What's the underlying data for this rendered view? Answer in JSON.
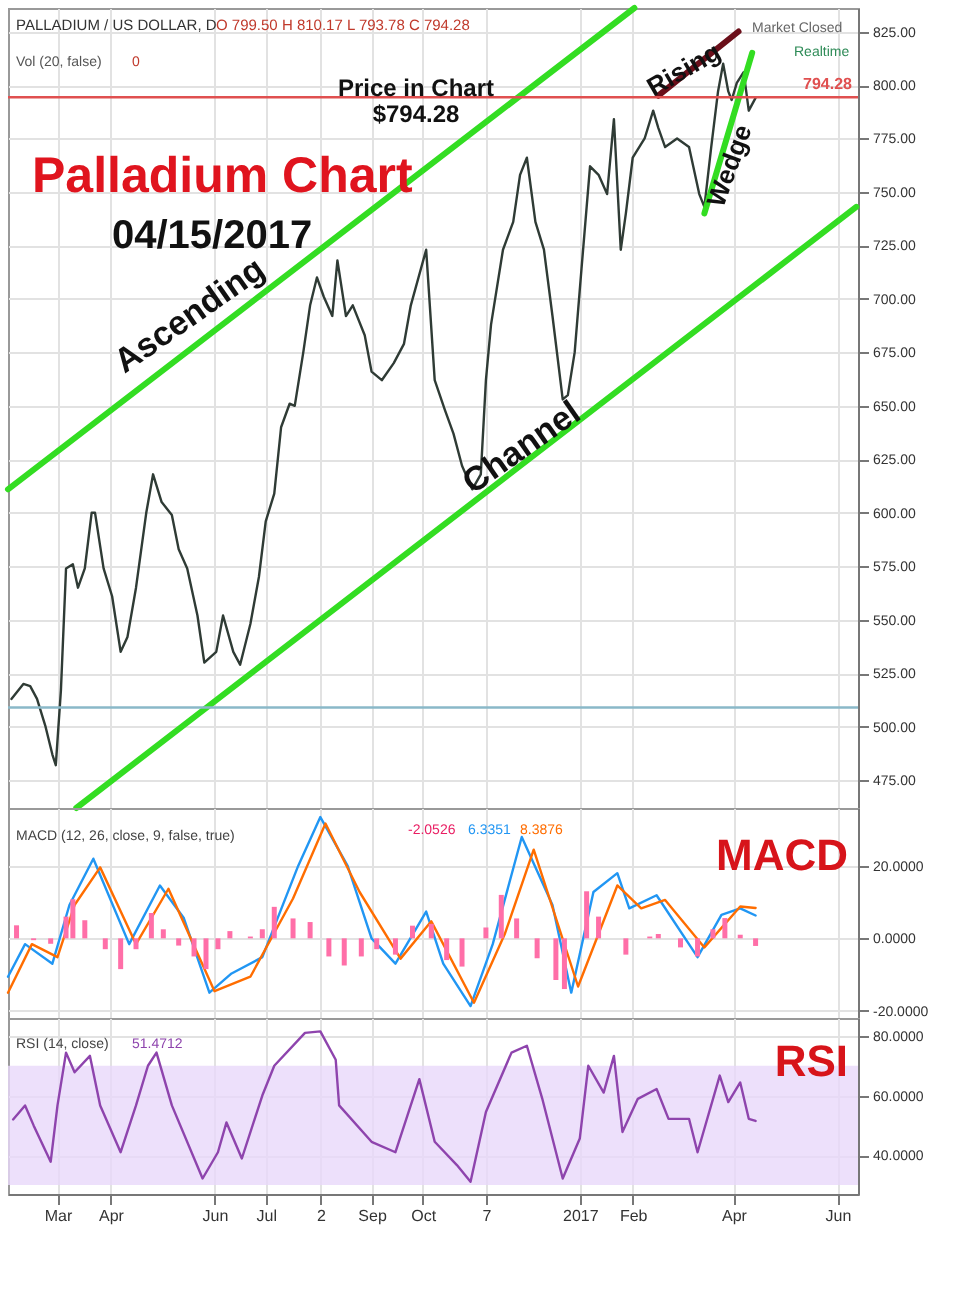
{
  "chart_data": [
    {
      "type": "line",
      "title": "Palladium Chart",
      "subtitle": "04/15/2017",
      "xlim": [
        "2016-02-01",
        "2017-06-13"
      ],
      "xticks": [
        {
          "value": "2016-03-01",
          "label": null
        },
        {
          "value": "2016-04-01",
          "label": null
        },
        {
          "value": "2016-06-01",
          "label": null
        },
        {
          "value": "2016-07-01",
          "label": null
        },
        {
          "value": "2016-08-02",
          "label": null
        },
        {
          "value": "2016-09-01",
          "label": null
        },
        {
          "value": "2016-10-01",
          "label": null
        },
        {
          "value": "2016-11-07",
          "label": null
        },
        {
          "value": "2017-01-01",
          "label": null
        },
        {
          "value": "2017-02-01",
          "label": null
        },
        {
          "value": "2017-04-01",
          "label": null
        },
        {
          "value": "2017-06-01",
          "label": null
        }
      ],
      "ylim": [
        462,
        836
      ],
      "yticks": [
        {
          "value": 475,
          "label": "475.00"
        },
        {
          "value": 500,
          "label": "500.00"
        },
        {
          "value": 525,
          "label": "525.00"
        },
        {
          "value": 550,
          "label": "550.00"
        },
        {
          "value": 575,
          "label": "575.00"
        },
        {
          "value": 600,
          "label": "600.00"
        },
        {
          "value": 625,
          "label": "625.00"
        },
        {
          "value": 650,
          "label": "650.00"
        },
        {
          "value": 675,
          "label": "675.00"
        },
        {
          "value": 700,
          "label": "700.00"
        },
        {
          "value": 725,
          "label": "725.00"
        },
        {
          "value": 750,
          "label": "750.00"
        },
        {
          "value": 775,
          "label": "775.00"
        },
        {
          "value": 800,
          "label": "800.00"
        },
        {
          "value": 825,
          "label": "825.00"
        }
      ],
      "tick_labels": "y",
      "grid": true,
      "series": [
        {
          "color": "#2f3b35",
          "x": [
            "2016-02-03",
            "2016-02-10",
            "2016-02-14",
            "2016-02-18",
            "2016-02-23",
            "2016-02-27",
            "2016-02-29",
            "2016-03-03",
            "2016-03-06",
            "2016-03-10",
            "2016-03-13",
            "2016-03-17",
            "2016-03-21",
            "2016-03-23",
            "2016-03-28",
            "2016-04-02",
            "2016-04-07",
            "2016-04-11",
            "2016-04-16",
            "2016-04-22",
            "2016-04-26",
            "2016-05-01",
            "2016-05-07",
            "2016-05-11",
            "2016-05-16",
            "2016-05-22",
            "2016-05-26",
            "2016-06-02",
            "2016-06-06",
            "2016-06-12",
            "2016-06-16",
            "2016-06-22",
            "2016-06-27",
            "2016-07-01",
            "2016-07-06",
            "2016-07-10",
            "2016-07-15",
            "2016-07-18",
            "2016-07-23",
            "2016-07-27",
            "2016-07-31",
            "2016-08-04",
            "2016-08-09",
            "2016-08-12",
            "2016-08-17",
            "2016-08-21",
            "2016-08-28",
            "2016-09-01",
            "2016-09-07",
            "2016-09-14",
            "2016-09-20",
            "2016-09-24",
            "2016-10-03",
            "2016-10-08",
            "2016-10-14",
            "2016-10-19",
            "2016-10-24",
            "2016-10-30",
            "2016-11-04",
            "2016-11-07",
            "2016-11-10",
            "2016-11-17",
            "2016-11-23",
            "2016-11-27",
            "2016-12-01",
            "2016-12-06",
            "2016-12-11",
            "2016-12-16",
            "2016-12-22",
            "2016-12-25",
            "2016-12-29",
            "2017-01-02",
            "2017-01-07",
            "2017-01-12",
            "2017-01-17",
            "2017-01-21",
            "2017-01-25",
            "2017-01-28",
            "2017-02-01",
            "2017-02-08",
            "2017-02-13",
            "2017-02-16",
            "2017-02-20",
            "2017-02-27",
            "2017-03-06",
            "2017-03-12",
            "2017-03-15",
            "2017-03-19",
            "2017-03-23",
            "2017-03-26",
            "2017-03-29",
            "2017-03-31",
            "2017-04-03",
            "2017-04-07",
            "2017-04-10",
            "2017-04-14"
          ],
          "values": [
            513,
            520,
            519,
            513,
            500,
            487,
            482,
            517,
            574,
            576,
            565,
            574,
            600,
            600,
            574,
            561,
            535,
            542,
            565,
            600,
            618,
            605,
            599,
            583,
            574,
            552,
            530,
            535,
            552,
            535,
            529,
            548,
            570,
            596,
            609,
            640,
            651,
            650,
            675,
            697,
            710,
            701,
            692,
            718,
            692,
            697,
            683,
            666,
            662,
            670,
            679,
            697,
            723,
            662,
            648,
            637,
            622,
            611,
            618,
            662,
            688,
            723,
            736,
            758,
            766,
            736,
            723,
            692,
            653,
            655,
            675,
            714,
            762,
            758,
            749,
            784,
            723,
            740,
            766,
            775,
            788,
            780,
            771,
            775,
            771,
            749,
            743,
            771,
            797,
            810,
            797,
            793,
            801,
            806,
            788,
            794
          ]
        },
        {
          "color": "#33dd22",
          "x": [
            "2016-02-01",
            "2017-02-02"
          ],
          "values": [
            611,
            836
          ]
        },
        {
          "color": "#33dd22",
          "x": [
            "2016-03-12",
            "2017-06-12"
          ],
          "values": [
            462,
            743
          ]
        },
        {
          "color": "#6b0f1a",
          "x": [
            "2017-02-16",
            "2017-04-04"
          ],
          "values": [
            795,
            825
          ]
        },
        {
          "color": "#33dd22",
          "x": [
            "2017-03-15",
            "2017-04-12"
          ],
          "values": [
            740,
            815
          ]
        }
      ],
      "ref_lines": [
        {
          "axis": "y",
          "value": 794.28,
          "label": "794.28",
          "color": "#e05050"
        },
        {
          "axis": "y",
          "value": 509,
          "color": "#8ab8c8"
        }
      ],
      "annotations": [
        "PALLADIUM / US DOLLAR, D",
        "O 799.50 H 810.17 L 793.78 C 794.28",
        "Vol (20, false)",
        "0",
        "Market Closed",
        "Realtime",
        "Price in Chart",
        "$794.28",
        "Ascending",
        "Channel",
        "Rising",
        "Wedge"
      ]
    },
    {
      "type": "line",
      "xlim": [
        "2016-02-01",
        "2017-06-13"
      ],
      "xticks": [
        {
          "value": "2016-03-01",
          "label": null
        },
        {
          "value": "2016-04-01",
          "label": null
        },
        {
          "value": "2016-06-01",
          "label": null
        },
        {
          "value": "2016-07-01",
          "label": null
        },
        {
          "value": "2016-08-02",
          "label": null
        },
        {
          "value": "2016-09-01",
          "label": null
        },
        {
          "value": "2016-10-01",
          "label": null
        },
        {
          "value": "2016-11-07",
          "label": null
        },
        {
          "value": "2017-01-01",
          "label": null
        },
        {
          "value": "2017-02-01",
          "label": null
        },
        {
          "value": "2017-04-01",
          "label": null
        },
        {
          "value": "2017-06-01",
          "label": null
        }
      ],
      "ylim": [
        -22,
        36
      ],
      "yticks": [
        {
          "value": -20,
          "label": "-20.0000"
        },
        {
          "value": 0,
          "label": "0.0000"
        },
        {
          "value": 20,
          "label": "20.0000"
        }
      ],
      "tick_labels": "y",
      "grid": true,
      "series": [
        {
          "type": "bar",
          "color": "#ff6fa8",
          "x": [
            "2016-02-06",
            "2016-02-16",
            "2016-02-26",
            "2016-03-06",
            "2016-03-10",
            "2016-03-17",
            "2016-03-29",
            "2016-04-07",
            "2016-04-16",
            "2016-04-25",
            "2016-05-02",
            "2016-05-11",
            "2016-05-20",
            "2016-05-27",
            "2016-06-03",
            "2016-06-10",
            "2016-06-22",
            "2016-06-29",
            "2016-07-06",
            "2016-07-17",
            "2016-07-27",
            "2016-08-07",
            "2016-08-16",
            "2016-08-26",
            "2016-09-04",
            "2016-09-15",
            "2016-09-25",
            "2016-10-06",
            "2016-10-15",
            "2016-10-24",
            "2016-11-07",
            "2016-11-16",
            "2016-11-25",
            "2016-12-07",
            "2016-12-18",
            "2016-12-23",
            "2017-01-05",
            "2017-01-12",
            "2017-01-28",
            "2017-02-11",
            "2017-02-16",
            "2017-03-01",
            "2017-03-11",
            "2017-03-20",
            "2017-03-27",
            "2017-04-05",
            "2017-04-14"
          ],
          "values": [
            3.6,
            -0.5,
            -1.5,
            6,
            10.8,
            5,
            -3,
            -8.5,
            -3,
            7,
            2.5,
            -2,
            -5,
            -8.5,
            -3,
            2,
            0.5,
            2.5,
            8.7,
            5.5,
            4.5,
            -5,
            -7.5,
            -5,
            -3,
            -4.5,
            3.5,
            4,
            -6,
            -7.8,
            3,
            12,
            5.5,
            -5.5,
            -11.5,
            -14,
            13,
            6,
            -4.5,
            0.5,
            1.2,
            -2.5,
            -5,
            2.5,
            5.6,
            1,
            -2.1
          ]
        },
        {
          "color": "#2196f3",
          "x": [
            "2016-02-01",
            "2016-02-11",
            "2016-02-27",
            "2016-03-08",
            "2016-03-22",
            "2016-04-12",
            "2016-04-30",
            "2016-05-14",
            "2016-05-29",
            "2016-06-11",
            "2016-06-29",
            "2016-07-20",
            "2016-08-02",
            "2016-08-18",
            "2016-09-01",
            "2016-09-15",
            "2016-10-03",
            "2016-10-13",
            "2016-10-29",
            "2016-11-11",
            "2016-11-28",
            "2016-12-16",
            "2016-12-27",
            "2017-01-09",
            "2017-01-23",
            "2017-01-30",
            "2017-02-15",
            "2017-03-11",
            "2017-03-25",
            "2017-04-05",
            "2017-04-14"
          ],
          "values": [
            -10.6,
            -1.6,
            -7,
            9.2,
            22,
            -1.6,
            14.6,
            5.6,
            -15,
            -9.7,
            -5.2,
            20,
            33.5,
            20,
            0,
            -7,
            7.4,
            -7,
            -18.7,
            -1.6,
            28,
            9.2,
            -15,
            12.8,
            18,
            8.3,
            11.9,
            -5.2,
            6.5,
            8.3,
            6.3
          ]
        },
        {
          "color": "#ff6d00",
          "x": [
            "2016-02-01",
            "2016-02-15",
            "2016-03-01",
            "2016-03-11",
            "2016-03-26",
            "2016-04-16",
            "2016-05-05",
            "2016-06-01",
            "2016-06-22",
            "2016-07-17",
            "2016-08-05",
            "2016-08-25",
            "2016-09-18",
            "2016-10-06",
            "2016-10-31",
            "2016-11-18",
            "2016-12-05",
            "2016-12-31",
            "2017-01-23",
            "2017-02-06",
            "2017-02-20",
            "2017-03-15",
            "2017-04-05",
            "2017-04-14"
          ],
          "values": [
            -15,
            -1.6,
            -5.2,
            9.2,
            19.6,
            -1.6,
            13.7,
            -14.6,
            -10.6,
            11,
            31.7,
            12.8,
            -5.6,
            4.7,
            -17.8,
            1.1,
            24.5,
            -13.3,
            14.6,
            8.3,
            10.6,
            -2.5,
            8.8,
            8.4
          ]
        }
      ],
      "annotations": [
        "MACD",
        "MACD (12, 26, close, 9, false, true)",
        "-2.0526",
        "6.3351",
        "8.3876"
      ]
    },
    {
      "type": "line",
      "xlim": [
        "2016-02-01",
        "2017-06-13"
      ],
      "xticks": [
        {
          "value": "2016-03-01",
          "label": "Mar"
        },
        {
          "value": "2016-04-01",
          "label": "Apr"
        },
        {
          "value": "2016-06-01",
          "label": "Jun"
        },
        {
          "value": "2016-07-01",
          "label": "Jul"
        },
        {
          "value": "2016-08-02",
          "label": "2"
        },
        {
          "value": "2016-09-01",
          "label": "Sep"
        },
        {
          "value": "2016-10-01",
          "label": "Oct"
        },
        {
          "value": "2016-11-07",
          "label": "7"
        },
        {
          "value": "2017-01-01",
          "label": "2017"
        },
        {
          "value": "2017-02-01",
          "label": "Feb"
        },
        {
          "value": "2017-04-01",
          "label": "Apr"
        },
        {
          "value": "2017-06-01",
          "label": "Jun"
        }
      ],
      "ylim": [
        27,
        86
      ],
      "yticks": [
        {
          "value": 40,
          "label": "40.0000"
        },
        {
          "value": 60,
          "label": "60.0000"
        },
        {
          "value": 80,
          "label": "80.0000"
        }
      ],
      "grid": true,
      "bands": [
        {
          "axis": "y",
          "from": 30,
          "to": 70,
          "color": "#e8d8fa"
        }
      ],
      "series": [
        {
          "color": "#8e44ad",
          "x": [
            "2016-02-04",
            "2016-02-11",
            "2016-02-16",
            "2016-02-26",
            "2016-03-01",
            "2016-03-06",
            "2016-03-11",
            "2016-03-20",
            "2016-03-26",
            "2016-04-07",
            "2016-04-16",
            "2016-04-23",
            "2016-04-28",
            "2016-05-07",
            "2016-05-25",
            "2016-06-03",
            "2016-06-08",
            "2016-06-17",
            "2016-06-29",
            "2016-07-06",
            "2016-07-24",
            "2016-08-02",
            "2016-08-11",
            "2016-08-13",
            "2016-09-01",
            "2016-09-15",
            "2016-09-29",
            "2016-10-08",
            "2016-10-21",
            "2016-10-29",
            "2016-11-07",
            "2016-11-22",
            "2016-12-01",
            "2016-12-10",
            "2016-12-22",
            "2017-01-01",
            "2017-01-06",
            "2017-01-15",
            "2017-01-21",
            "2017-01-26",
            "2017-02-04",
            "2017-02-15",
            "2017-02-22",
            "2017-03-06",
            "2017-03-11",
            "2017-03-24",
            "2017-03-29",
            "2017-04-05",
            "2017-04-10",
            "2017-04-14"
          ],
          "values": [
            52,
            56.7,
            50,
            37.8,
            56.7,
            74.4,
            67.8,
            73.3,
            56.7,
            41,
            56.7,
            70,
            74.4,
            56.7,
            32.2,
            41,
            51,
            38.9,
            60,
            70,
            81,
            81.5,
            72,
            56.7,
            44.5,
            41,
            65.5,
            44.5,
            36.7,
            31.1,
            54.5,
            74.4,
            76.7,
            59,
            32.2,
            45.6,
            70,
            61,
            73.3,
            47.8,
            58.9,
            62.2,
            52.2,
            52.2,
            41,
            66.7,
            57.8,
            64.4,
            52.2,
            51.5
          ]
        }
      ],
      "annotations": [
        "RSI",
        "RSI (14, close)",
        "51.4712"
      ]
    }
  ]
}
